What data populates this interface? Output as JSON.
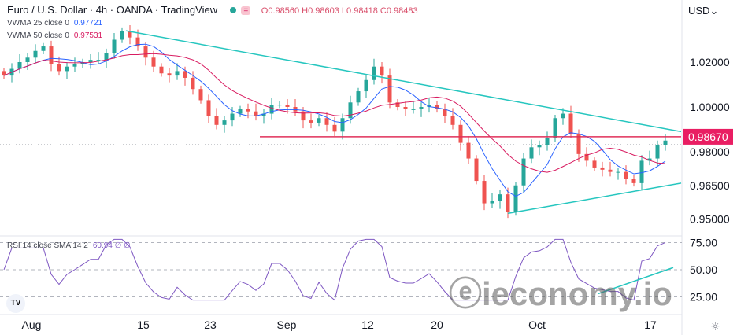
{
  "header": {
    "symbol": "Euro / U.S. Dollar · 4h · OANDA · TradingView",
    "ohlc": "O0.98560 H0.98603 L0.98418 C0.98483",
    "currency": "USD"
  },
  "indicators": {
    "vwma25_label": "VWMA 25 close 0",
    "vwma25_value": "0.97721",
    "vwma50_label": "VWMA 50 close 0",
    "vwma50_value": "0.97531",
    "rsi_label": "RSI 14 close SMA 14 2",
    "rsi_value": "60.94 ∅ ∅"
  },
  "watermark": "ieconomy.io",
  "logo": "TV",
  "chart_data": {
    "type": "candlestick",
    "closes": [
      1.014,
      1.017,
      1.02,
      1.022,
      1.025,
      1.027,
      1.019,
      1.016,
      1.018,
      1.019,
      1.02,
      1.021,
      1.021,
      1.024,
      1.03,
      1.034,
      1.031,
      1.027,
      1.022,
      1.018,
      1.015,
      1.014,
      1.016,
      1.013,
      1.008,
      1.003,
      0.996,
      0.992,
      0.994,
      0.997,
      0.999,
      0.998,
      0.996,
      0.997,
      1.001,
      1.001,
      1.0,
      0.998,
      0.994,
      0.993,
      0.995,
      0.992,
      0.989,
      0.995,
      1.002,
      1.007,
      1.012,
      1.018,
      1.014,
      1.002,
      1.0,
      0.999,
      0.999,
      1.0,
      1.001,
      0.999,
      0.996,
      0.992,
      0.984,
      0.977,
      0.967,
      0.957,
      0.958,
      0.961,
      0.953,
      0.965,
      0.977,
      0.982,
      0.983,
      0.986,
      0.995,
      0.997,
      0.988,
      0.979,
      0.976,
      0.973,
      0.972,
      0.971,
      0.971,
      0.968,
      0.966,
      0.976,
      0.977,
      0.983,
      0.985
    ],
    "price_ticks": [
      "1.02000",
      "1.00000",
      "0.98000",
      "0.96500",
      "0.95000"
    ],
    "price_tick_values": [
      1.02,
      1.0,
      0.98,
      0.965,
      0.95
    ],
    "current_price_label": "0.98670",
    "current_price": 0.9867,
    "rsi_ticks": [
      "75.00",
      "50.00",
      "25.00"
    ],
    "rsi_tick_values": [
      75,
      50,
      25
    ],
    "x_ticks": [
      {
        "label": "Aug",
        "i": 3.5
      },
      {
        "label": "15",
        "i": 17.7
      },
      {
        "label": "23",
        "i": 26.2
      },
      {
        "label": "Sep",
        "i": 35.9
      },
      {
        "label": "12",
        "i": 46.2
      },
      {
        "label": "20",
        "i": 55
      },
      {
        "label": "Oct",
        "i": 67.7
      },
      {
        "label": "17",
        "i": 82.1
      }
    ],
    "trendlines": [
      {
        "from": [
          15.5,
          1.034
        ],
        "to": [
          86,
          0.989
        ],
        "color": "#26c6bf"
      },
      {
        "from": [
          64,
          0.9525
        ],
        "to": [
          86,
          0.966
        ],
        "color": "#26c6bf"
      },
      {
        "from": [
          32.5,
          0.9867
        ],
        "to": [
          86,
          0.9867
        ],
        "color": "#e0305a"
      }
    ],
    "rsi_trendline": {
      "from": [
        75.5,
        28
      ],
      "to": [
        85,
        52
      ]
    },
    "colors": {
      "up": "#26a69a",
      "down": "#ef5350",
      "vwma25": "#2962ff",
      "vwma50": "#d81b60",
      "rsi": "#7e57c2",
      "trend": "#26c6bf"
    }
  }
}
